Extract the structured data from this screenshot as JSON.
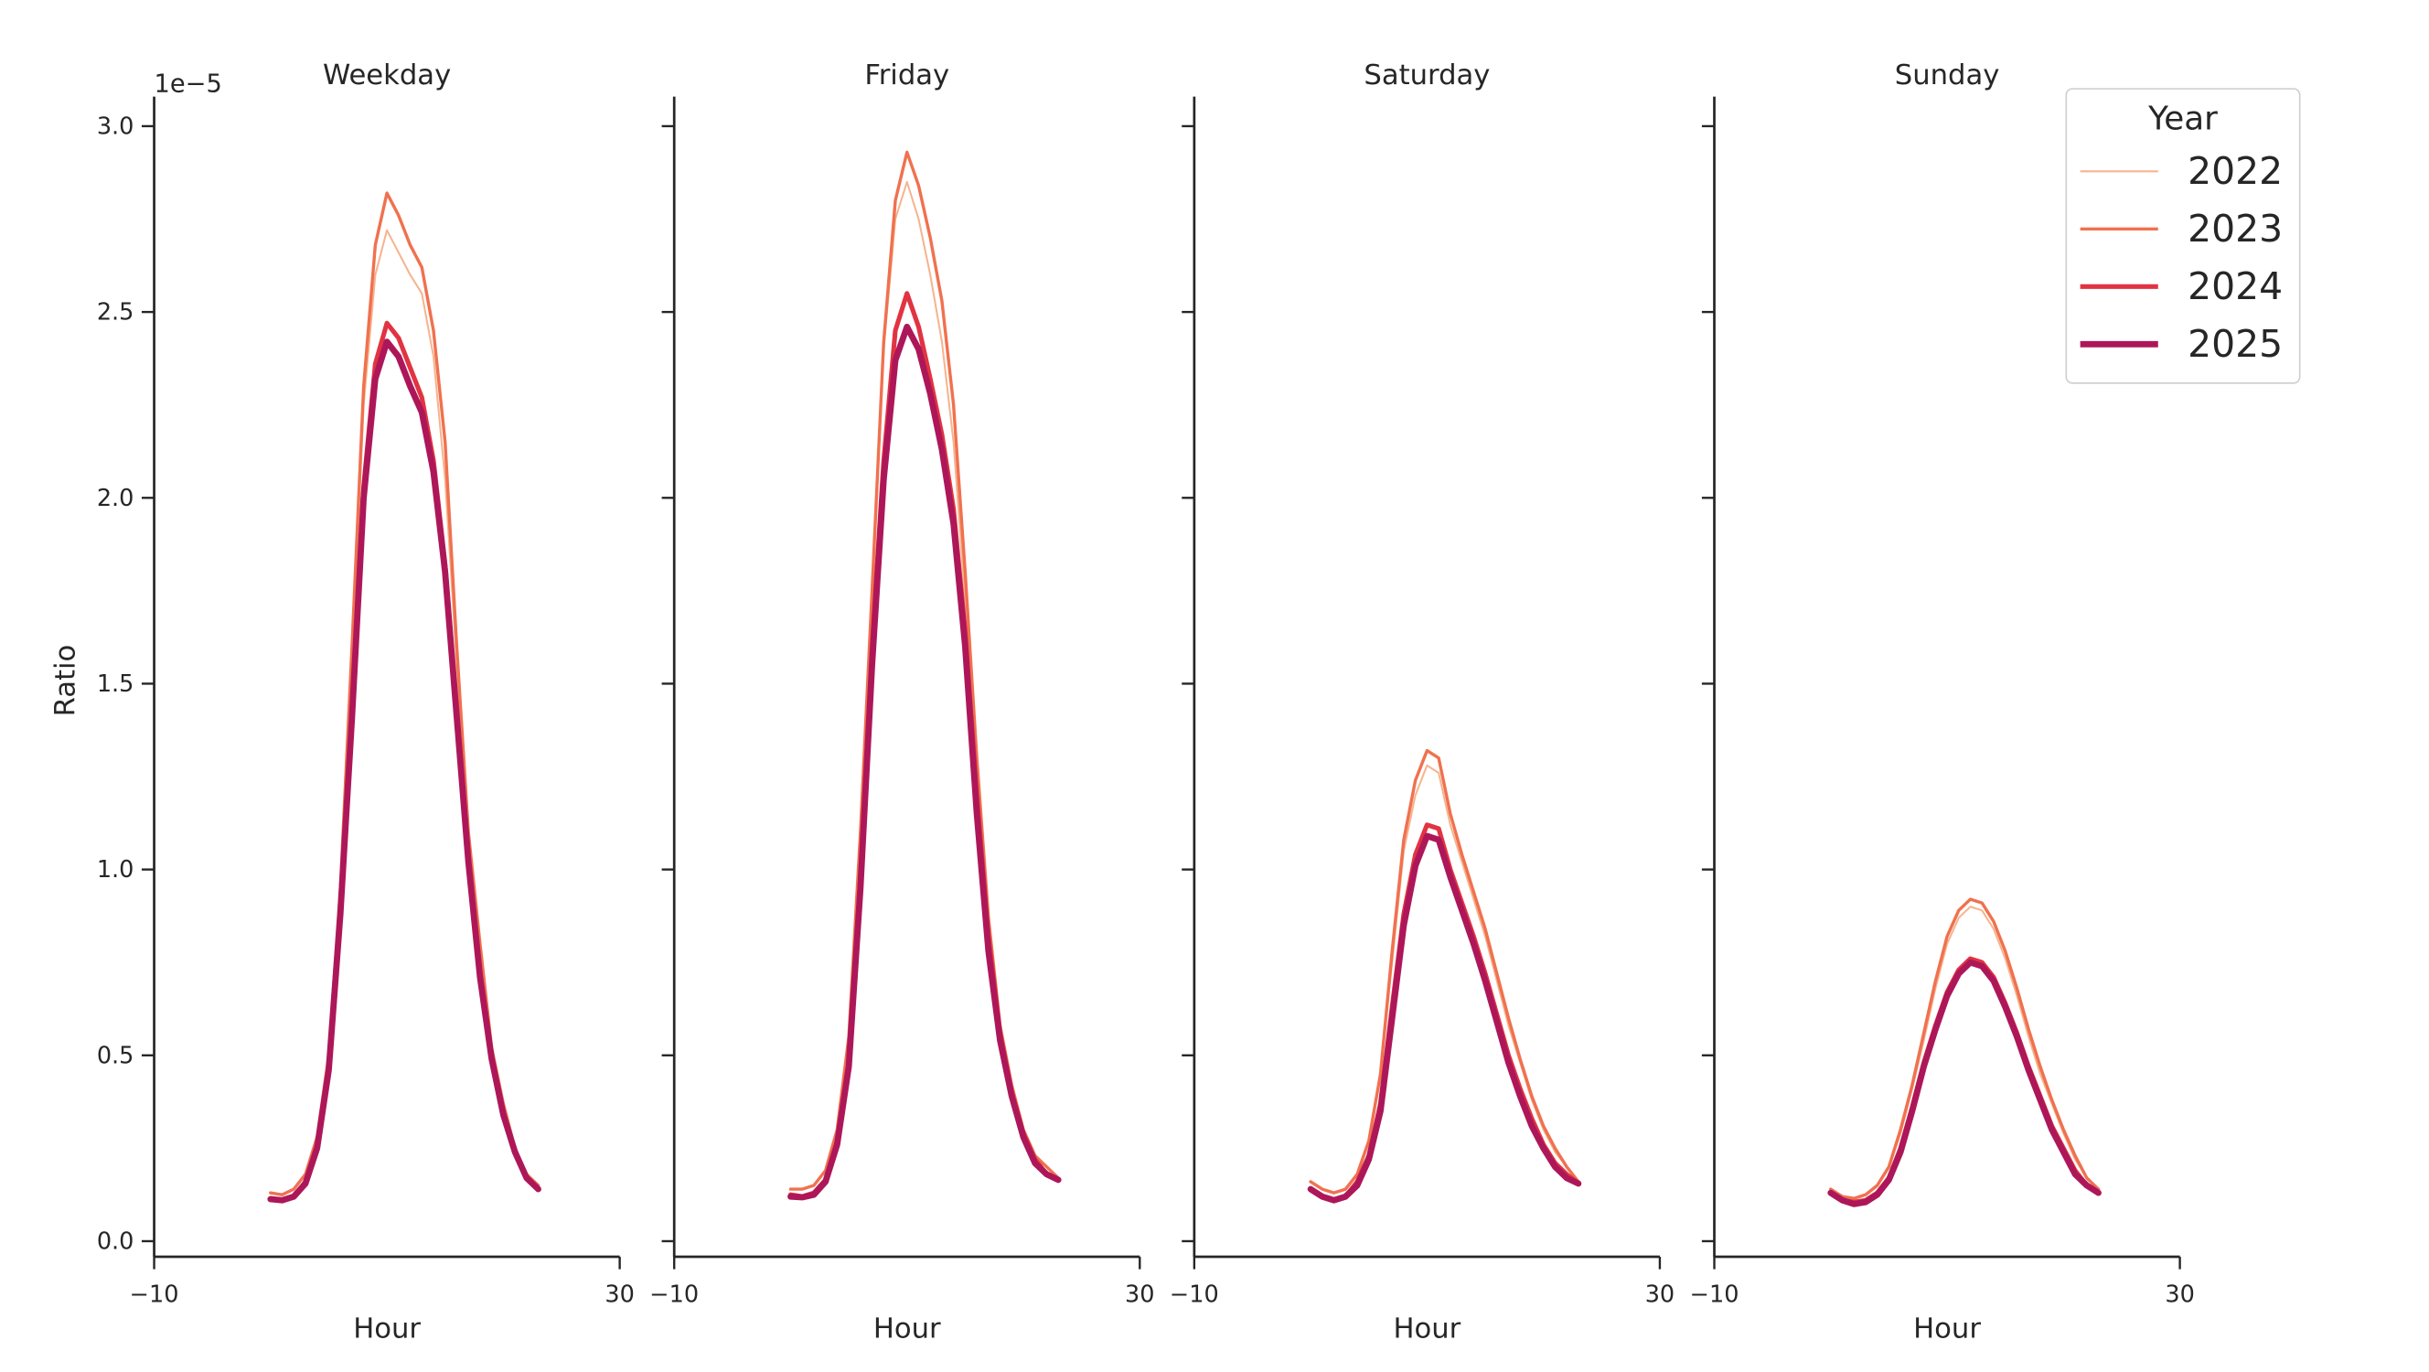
{
  "chart_data": {
    "type": "line",
    "ylabel": "Ratio",
    "xlabel": "Hour",
    "y_offset_label": "1e−5",
    "xlim": [
      -10,
      30
    ],
    "ylim": [
      -0.04,
      3.08
    ],
    "x_ticks": [
      "−10",
      "30"
    ],
    "x_tick_values": [
      -10,
      30
    ],
    "y_ticks": [
      "0.0",
      "0.5",
      "1.0",
      "1.5",
      "2.0",
      "2.5",
      "3.0"
    ],
    "y_tick_values": [
      0,
      0.5,
      1.0,
      1.5,
      2.0,
      2.5,
      3.0
    ],
    "grid": false,
    "legend": {
      "title": "Year",
      "placement": "top-right",
      "entries": [
        "2022",
        "2023",
        "2024",
        "2025"
      ]
    },
    "colors": {
      "2022": "#f6b48f",
      "2023": "#f0714f",
      "2024": "#e13342",
      "2025": "#ad1759"
    },
    "x": [
      0,
      1,
      2,
      3,
      4,
      5,
      6,
      7,
      8,
      9,
      10,
      11,
      12,
      13,
      14,
      15,
      16,
      17,
      18,
      19,
      20,
      21,
      22,
      23
    ],
    "panels": [
      {
        "title": "Weekday",
        "series": [
          {
            "name": "2022",
            "values": [
              0.13,
              0.125,
              0.14,
              0.18,
              0.28,
              0.5,
              0.95,
              1.55,
              2.25,
              2.6,
              2.72,
              2.66,
              2.6,
              2.55,
              2.38,
              2.05,
              1.55,
              1.08,
              0.78,
              0.52,
              0.36,
              0.25,
              0.18,
              0.15
            ]
          },
          {
            "name": "2023",
            "values": [
              0.13,
              0.125,
              0.14,
              0.18,
              0.28,
              0.5,
              0.95,
              1.6,
              2.3,
              2.68,
              2.82,
              2.76,
              2.68,
              2.62,
              2.45,
              2.15,
              1.6,
              1.1,
              0.8,
              0.52,
              0.37,
              0.25,
              0.18,
              0.15
            ]
          },
          {
            "name": "2024",
            "values": [
              0.115,
              0.11,
              0.12,
              0.16,
              0.26,
              0.47,
              0.9,
              1.43,
              2.03,
              2.36,
              2.47,
              2.43,
              2.35,
              2.27,
              2.1,
              1.82,
              1.42,
              1.03,
              0.72,
              0.5,
              0.35,
              0.24,
              0.17,
              0.14
            ]
          },
          {
            "name": "2025",
            "values": [
              0.113,
              0.11,
              0.12,
              0.155,
              0.25,
              0.46,
              0.88,
              1.41,
              2.0,
              2.32,
              2.42,
              2.38,
              2.3,
              2.23,
              2.07,
              1.8,
              1.41,
              1.02,
              0.71,
              0.49,
              0.34,
              0.24,
              0.17,
              0.14
            ]
          }
        ]
      },
      {
        "title": "Friday",
        "series": [
          {
            "name": "2022",
            "values": [
              0.14,
              0.14,
              0.15,
              0.19,
              0.3,
              0.55,
              1.1,
              1.75,
              2.4,
              2.75,
              2.85,
              2.75,
              2.6,
              2.42,
              2.15,
              1.72,
              1.25,
              0.83,
              0.57,
              0.42,
              0.3,
              0.22,
              0.2,
              0.17
            ]
          },
          {
            "name": "2023",
            "values": [
              0.14,
              0.14,
              0.15,
              0.19,
              0.3,
              0.55,
              1.1,
              1.75,
              2.42,
              2.8,
              2.93,
              2.84,
              2.7,
              2.53,
              2.25,
              1.8,
              1.3,
              0.87,
              0.58,
              0.42,
              0.3,
              0.23,
              0.2,
              0.17
            ]
          },
          {
            "name": "2024",
            "values": [
              0.125,
              0.12,
              0.13,
              0.165,
              0.27,
              0.48,
              0.97,
              1.6,
              2.1,
              2.45,
              2.55,
              2.46,
              2.32,
              2.17,
              1.97,
              1.64,
              1.2,
              0.82,
              0.56,
              0.4,
              0.29,
              0.22,
              0.18,
              0.165
            ]
          },
          {
            "name": "2025",
            "values": [
              0.12,
              0.118,
              0.125,
              0.16,
              0.26,
              0.47,
              0.95,
              1.55,
              2.05,
              2.37,
              2.46,
              2.4,
              2.28,
              2.13,
              1.93,
              1.6,
              1.15,
              0.78,
              0.54,
              0.39,
              0.28,
              0.21,
              0.18,
              0.165
            ]
          }
        ]
      },
      {
        "title": "Saturday",
        "series": [
          {
            "name": "2022",
            "values": [
              0.16,
              0.14,
              0.13,
              0.14,
              0.18,
              0.27,
              0.45,
              0.75,
              1.05,
              1.2,
              1.28,
              1.26,
              1.12,
              1.02,
              0.92,
              0.82,
              0.7,
              0.58,
              0.48,
              0.38,
              0.3,
              0.24,
              0.2,
              0.16
            ]
          },
          {
            "name": "2023",
            "values": [
              0.16,
              0.14,
              0.13,
              0.14,
              0.18,
              0.27,
              0.45,
              0.78,
              1.08,
              1.24,
              1.32,
              1.3,
              1.15,
              1.04,
              0.94,
              0.84,
              0.72,
              0.6,
              0.49,
              0.39,
              0.31,
              0.25,
              0.2,
              0.16
            ]
          },
          {
            "name": "2024",
            "values": [
              0.14,
              0.12,
              0.11,
              0.12,
              0.16,
              0.23,
              0.37,
              0.63,
              0.88,
              1.04,
              1.12,
              1.11,
              1.0,
              0.91,
              0.82,
              0.72,
              0.61,
              0.5,
              0.41,
              0.33,
              0.26,
              0.21,
              0.18,
              0.155
            ]
          },
          {
            "name": "2025",
            "values": [
              0.14,
              0.12,
              0.11,
              0.12,
              0.15,
              0.22,
              0.35,
              0.6,
              0.85,
              1.01,
              1.09,
              1.08,
              0.98,
              0.89,
              0.8,
              0.7,
              0.59,
              0.48,
              0.39,
              0.31,
              0.25,
              0.2,
              0.17,
              0.155
            ]
          }
        ]
      },
      {
        "title": "Sunday",
        "series": [
          {
            "name": "2022",
            "values": [
              0.14,
              0.12,
              0.115,
              0.125,
              0.15,
              0.2,
              0.29,
              0.41,
              0.54,
              0.68,
              0.8,
              0.87,
              0.9,
              0.89,
              0.84,
              0.76,
              0.66,
              0.55,
              0.45,
              0.37,
              0.29,
              0.22,
              0.17,
              0.14
            ]
          },
          {
            "name": "2023",
            "values": [
              0.14,
              0.12,
              0.115,
              0.125,
              0.15,
              0.2,
              0.3,
              0.42,
              0.56,
              0.7,
              0.82,
              0.89,
              0.92,
              0.91,
              0.86,
              0.78,
              0.68,
              0.57,
              0.47,
              0.38,
              0.3,
              0.23,
              0.17,
              0.14
            ]
          },
          {
            "name": "2024",
            "values": [
              0.13,
              0.11,
              0.105,
              0.11,
              0.13,
              0.17,
              0.25,
              0.36,
              0.48,
              0.58,
              0.67,
              0.73,
              0.76,
              0.75,
              0.71,
              0.64,
              0.56,
              0.47,
              0.39,
              0.31,
              0.25,
              0.19,
              0.15,
              0.13
            ]
          },
          {
            "name": "2025",
            "values": [
              0.13,
              0.11,
              0.1,
              0.105,
              0.125,
              0.165,
              0.24,
              0.35,
              0.47,
              0.57,
              0.66,
              0.72,
              0.75,
              0.74,
              0.7,
              0.63,
              0.55,
              0.46,
              0.38,
              0.3,
              0.24,
              0.18,
              0.15,
              0.13
            ]
          }
        ]
      }
    ]
  }
}
